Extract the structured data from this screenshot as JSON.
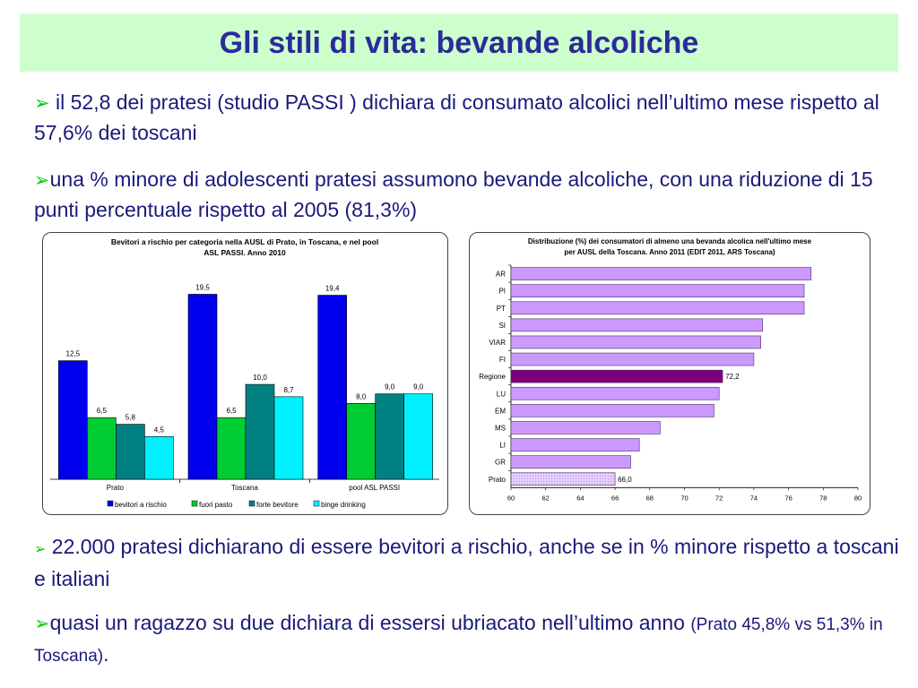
{
  "slide": {
    "title": "Gli stili di vita: bevande alcoliche",
    "bullets_top": [
      {
        "marker": "➢",
        "text": " il 52,8 dei pratesi (studio PASSI ) dichiara di consumato alcolici nell’ultimo mese rispetto al 57,6% dei toscani"
      },
      {
        "marker": "➢",
        "text": "una % minore di adolescenti pratesi assumono bevande alcoliche, con una riduzione di 15 punti percentuale rispetto al 2005 (81,3%)"
      }
    ],
    "bullets_bottom": [
      {
        "marker": "➢",
        "text": " 22.000 pratesi dichiarano di essere bevitori a rischio, anche se in % minore rispetto a toscani e italiani"
      },
      {
        "marker": "➢",
        "text": "quasi un ragazzo su due dichiara di essersi ubriacato nell’ultimo anno ",
        "note": "(Prato 45,8% vs 51,3% in Toscana)",
        "end": "."
      }
    ]
  },
  "chart_data": [
    {
      "type": "bar",
      "title": "Bevitori a rischio per categoria nella AUSL di Prato, in  Toscana, e nel pool ASL PASSI. Anno 2010",
      "categories": [
        "Prato",
        "Toscana",
        "pool ASL PASSI"
      ],
      "series": [
        {
          "name": "bevitori a rischio",
          "color": "#0000ee",
          "values": [
            12.5,
            19.5,
            19.4
          ],
          "labels": [
            "12,5",
            "19,5",
            "19,4"
          ]
        },
        {
          "name": "fuori pasto",
          "color": "#00cc33",
          "values": [
            6.5,
            6.5,
            8.0
          ],
          "labels": [
            "6,5",
            "6,5",
            "8,0"
          ]
        },
        {
          "name": "forte bevitore",
          "color": "#008080",
          "values": [
            5.8,
            10.0,
            9.0
          ],
          "labels": [
            "5,8",
            "10,0",
            "9,0"
          ]
        },
        {
          "name": "binge drinking",
          "color": "#00f0ff",
          "values": [
            4.5,
            8.7,
            9.0
          ],
          "labels": [
            "4,5",
            "8,7",
            "9,0"
          ]
        }
      ],
      "ylim": [
        0,
        22
      ],
      "legend": "bottom"
    },
    {
      "type": "bar",
      "orientation": "horizontal",
      "title": "Distribuzione (%) dei consumatori di almeno una bevanda alcolica nell'ultimo mese per AUSL della Toscana. Anno 2011 (EDIT 2011,  ARS Toscana)",
      "categories": [
        "AR",
        "PI",
        "PT",
        "SI",
        "VIAR",
        "FI",
        "Regione",
        "LU",
        "EM",
        "MS",
        "LI",
        "GR",
        "Prato"
      ],
      "values": [
        77.3,
        76.9,
        76.9,
        74.5,
        74.4,
        74.0,
        72.2,
        72.0,
        71.7,
        68.6,
        67.4,
        66.9,
        66.0
      ],
      "data_labels": {
        "Regione": "72,2",
        "Prato": "66,0"
      },
      "colors": {
        "default": "#cc99ff",
        "highlight": "#7a007a",
        "highlight_category": "Regione",
        "pattern_category": "Prato",
        "pattern": "#e6d2fa"
      },
      "xlim": [
        60,
        80
      ],
      "xticks": [
        "60",
        "62",
        "64",
        "66",
        "68",
        "70",
        "72",
        "74",
        "76",
        "78",
        "80"
      ]
    }
  ]
}
